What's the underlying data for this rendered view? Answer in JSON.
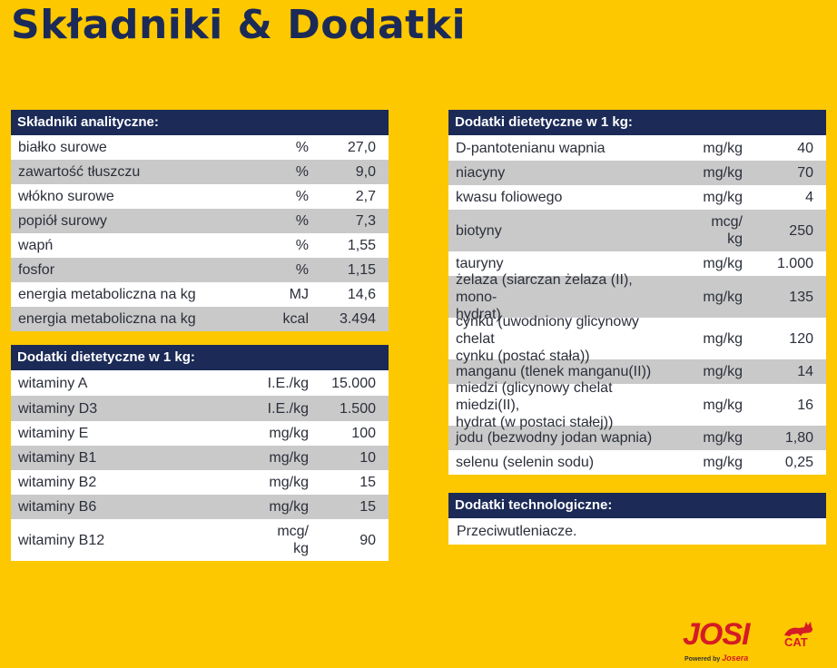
{
  "title": "Składniki & Dodatki",
  "analytic": {
    "header": "Składniki analityczne:",
    "rows": [
      {
        "name": "białko surowe",
        "unit": "%",
        "value": "27,0"
      },
      {
        "name": "zawartość tłuszczu",
        "unit": "%",
        "value": "9,0"
      },
      {
        "name": "włókno surowe",
        "unit": "%",
        "value": "2,7"
      },
      {
        "name": "popiół surowy",
        "unit": "%",
        "value": "7,3"
      },
      {
        "name": "wapń",
        "unit": "%",
        "value": "1,55"
      },
      {
        "name": "fosfor",
        "unit": "%",
        "value": "1,15"
      },
      {
        "name": "energia metaboliczna na kg",
        "unit": "MJ",
        "value": "14,6"
      },
      {
        "name": "energia metaboliczna na kg",
        "unit": "kcal",
        "value": "3.494"
      }
    ]
  },
  "vitamins": {
    "header": "Dodatki dietetyczne w 1 kg:",
    "rows": [
      {
        "name": "witaminy A",
        "unit": "I.E./kg",
        "value": "15.000"
      },
      {
        "name": "witaminy D3",
        "unit": "I.E./kg",
        "value": "1.500"
      },
      {
        "name": "witaminy E",
        "unit": "mg/kg",
        "value": "100"
      },
      {
        "name": "witaminy B1",
        "unit": "mg/kg",
        "value": "10"
      },
      {
        "name": "witaminy B2",
        "unit": "mg/kg",
        "value": "15"
      },
      {
        "name": "witaminy B6",
        "unit": "mg/kg",
        "value": "15"
      },
      {
        "name": "witaminy B12",
        "unit": "mcg/\nkg",
        "value": "90"
      }
    ]
  },
  "minerals": {
    "header": "Dodatki dietetyczne w 1 kg:",
    "rows": [
      {
        "name": "D-pantotenianu wapnia",
        "unit": "mg/kg",
        "value": "40"
      },
      {
        "name": "niacyny",
        "unit": "mg/kg",
        "value": "70"
      },
      {
        "name": "kwasu foliowego",
        "unit": "mg/kg",
        "value": "4"
      },
      {
        "name": "biotyny",
        "unit": "mcg/\nkg",
        "value": "250"
      },
      {
        "name": "tauryny",
        "unit": "mg/kg",
        "value": "1.000"
      },
      {
        "name": "żelaza (siarczan żelaza (II), mono-\nhydrat)",
        "unit": "mg/kg",
        "value": "135"
      },
      {
        "name": "cynku (uwodniony glicynowy chelat\ncynku (postać stała))",
        "unit": "mg/kg",
        "value": "120"
      },
      {
        "name": "manganu (tlenek manganu(II))",
        "unit": "mg/kg",
        "value": "14"
      },
      {
        "name": "miedzi (glicynowy chelat miedzi(II),\nhydrat (w postaci stałej))",
        "unit": "mg/kg",
        "value": "16"
      },
      {
        "name": "jodu (bezwodny jodan wapnia)",
        "unit": "mg/kg",
        "value": "1,80"
      },
      {
        "name": "selenu (selenin sodu)",
        "unit": "mg/kg",
        "value": "0,25"
      }
    ]
  },
  "tech": {
    "header": "Dodatki technologiczne:",
    "text": "Przeciwutleniacze."
  },
  "logo": {
    "main": "JOSI",
    "cat": "CAT",
    "powered": "Powered by",
    "brand": "Josera"
  },
  "colors": {
    "background": "#FDC800",
    "header": "#1b2a57",
    "row_alt": "#c9c9c9",
    "logo_red": "#d51b25"
  }
}
